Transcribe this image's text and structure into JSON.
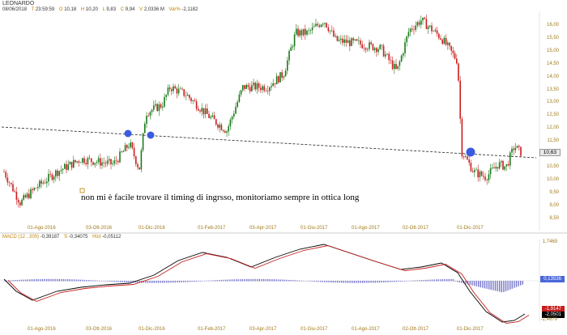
{
  "instrument": "LEONARDO",
  "ohlc": [
    {
      "key": "",
      "value": "08/06/2018"
    },
    {
      "key": "T",
      "value": "23:59:59"
    },
    {
      "key": "O",
      "value": "10,18"
    },
    {
      "key": "H",
      "value": "10,20"
    },
    {
      "key": "L",
      "value": "9,83"
    },
    {
      "key": "C",
      "value": "9,94"
    },
    {
      "key": "V",
      "value": "2,0336 M"
    },
    {
      "key": "Var%",
      "value": "-2,1182"
    }
  ],
  "annotation": "non mi è facile trovare il timing di ingrsso, monitoriamo sempre in ottica long",
  "price_label": "10,63",
  "price_axis": [
    "16,00",
    "15,50",
    "15,00",
    "14,50",
    "14,00",
    "13,50",
    "13,00",
    "12,50",
    "12,00",
    "11,50",
    "11,00",
    "10,50",
    "10,00",
    "9,50",
    "9,00",
    "8,50"
  ],
  "price_x_labels": [
    "01-Ago-2016",
    "03-Ott-2016",
    "01-Dic-2016",
    "01-Feb-2017",
    "03-Apr-2017",
    "01-Giu-2017",
    "01-Ago-2017",
    "02-Ott-2017",
    "01-Dic-2017"
  ],
  "macd": {
    "label": "MACD",
    "params": "(12 , 200)",
    "values": [
      {
        "key": "",
        "value": "-0,39187"
      },
      {
        "key": "S",
        "value": "-0,34075"
      },
      {
        "key": "Hist",
        "value": "-0,05112"
      }
    ],
    "axis_top": "1,7469",
    "axis_mid": "0,13536",
    "axis_low1": "-1,9147",
    "axis_low2": "-2,0501",
    "axis_bottom": "-2,4679",
    "x_labels": [
      "01-Ago-2016",
      "03-Ott-2016",
      "01-Dic-2016",
      "01-Feb-2017",
      "03-Apr-2017",
      "01-Giu-2017",
      "01-Ago-2017",
      "02-Ott-2017",
      "01-Dic-2017"
    ]
  },
  "colors": {
    "up": "#1a7a1a",
    "down": "#c81e1e",
    "axis": "#a07a1a",
    "marker": "#3a5ce0",
    "macd": "#000000",
    "signal": "#c81e1e",
    "hist": "#7777cc"
  }
}
